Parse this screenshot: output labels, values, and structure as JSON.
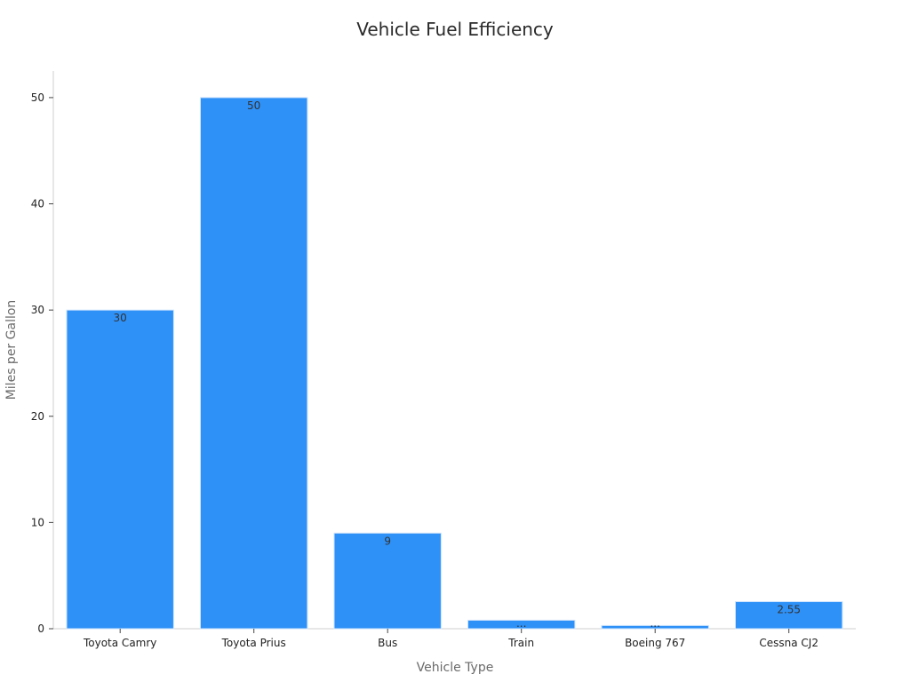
{
  "chart_data": {
    "type": "bar",
    "title": "Vehicle Fuel Efficiency",
    "xlabel": "Vehicle Type",
    "ylabel": "Miles per Gallon",
    "categories": [
      "Toyota Camry",
      "Toyota Prius",
      "Bus",
      "Train",
      "Boeing 767",
      "Cessna CJ2"
    ],
    "values": [
      30,
      50,
      9,
      0.8,
      0.3,
      2.55
    ],
    "data_labels": [
      "30",
      "50",
      "9",
      "...",
      "...",
      "2.55"
    ],
    "ylim": [
      0,
      52.5
    ],
    "yticks": [
      0,
      10,
      20,
      30,
      40,
      50
    ],
    "grid": false,
    "legend": "none",
    "bar_color": "#2e91f8",
    "bar_edge_color": "#cfe3fb"
  }
}
